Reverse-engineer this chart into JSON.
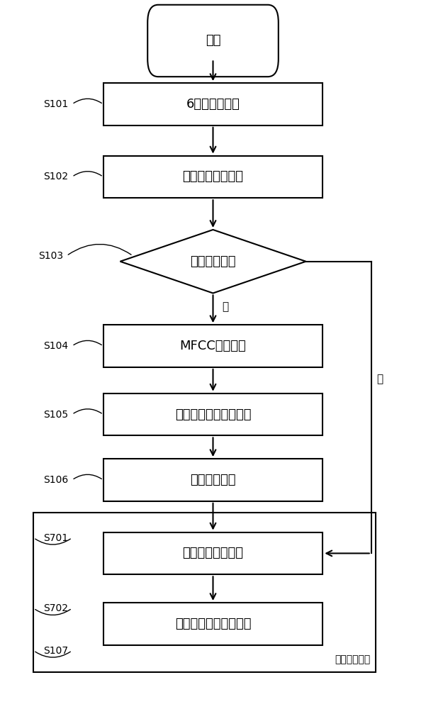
{
  "bg_color": "#ffffff",
  "line_color": "#000000",
  "text_color": "#000000",
  "font_size": 13,
  "start_label": "开始",
  "s101_label": "6秒钟音频数据",
  "s102_label": "音频数据切片处理",
  "s103_label": "是否包含声音",
  "s104_label": "MFCC特征提取",
  "s105_label": "卷积神经网络特征提取",
  "s106_label": "全连接层分类",
  "s701_label": "判断结果进入队列",
  "s702_label": "判断是否超过预定比例",
  "yes_label": "是",
  "no_label": "否",
  "group_label": "鼾声事件判断",
  "step_labels": [
    "S101",
    "S102",
    "S103",
    "S104",
    "S105",
    "S106",
    "S701",
    "S702",
    "S107"
  ]
}
